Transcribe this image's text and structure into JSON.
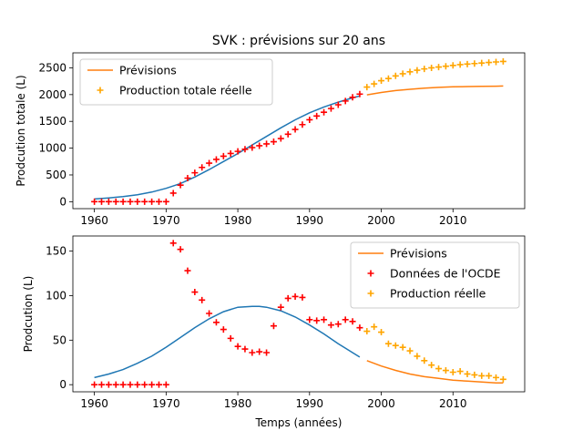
{
  "chart_data": {
    "title": "SVK : prévisions sur 20 ans",
    "charts": [
      {
        "type": "line+scatter",
        "ylabel": "Prodcution totale (L)",
        "xlabel": "",
        "xlim": [
          1957,
          2020
        ],
        "ylim": [
          -130,
          2780
        ],
        "xticks": [
          1960,
          1970,
          1980,
          1990,
          2000,
          2010
        ],
        "yticks": [
          0,
          500,
          1000,
          1500,
          2000,
          2500
        ],
        "legend_position": "top-left",
        "legend": [
          "Prévisions",
          "Production totale réelle"
        ],
        "fit_line": {
          "name": "",
          "color": "#1f77b4",
          "x": [
            1960,
            1962,
            1964,
            1966,
            1968,
            1970,
            1972,
            1974,
            1976,
            1978,
            1980,
            1982,
            1984,
            1986,
            1988,
            1990,
            1992,
            1994,
            1996,
            1997
          ],
          "y": [
            50,
            70,
            95,
            130,
            180,
            250,
            340,
            460,
            600,
            750,
            900,
            1060,
            1220,
            1380,
            1530,
            1660,
            1770,
            1860,
            1940,
            1975
          ]
        },
        "forecast_line": {
          "name": "Prévisions",
          "color": "#ff7f0e",
          "x": [
            1998,
            2000,
            2002,
            2004,
            2006,
            2008,
            2010,
            2012,
            2014,
            2016,
            2017
          ],
          "y": [
            1995,
            2040,
            2075,
            2100,
            2120,
            2135,
            2145,
            2150,
            2155,
            2158,
            2160
          ]
        },
        "observed_points": {
          "name": "",
          "color": "#ff0000",
          "x": [
            1960,
            1961,
            1962,
            1963,
            1964,
            1965,
            1966,
            1967,
            1968,
            1969,
            1970,
            1971,
            1972,
            1973,
            1974,
            1975,
            1976,
            1977,
            1978,
            1979,
            1980,
            1981,
            1982,
            1983,
            1984,
            1985,
            1986,
            1987,
            1988,
            1989,
            1990,
            1991,
            1992,
            1993,
            1994,
            1995,
            1996,
            1997
          ],
          "y": [
            0,
            0,
            0,
            0,
            0,
            0,
            0,
            0,
            0,
            0,
            0,
            160,
            310,
            440,
            540,
            640,
            720,
            790,
            850,
            900,
            940,
            980,
            1010,
            1045,
            1080,
            1120,
            1180,
            1260,
            1350,
            1440,
            1530,
            1600,
            1670,
            1740,
            1810,
            1880,
            1950,
            2010
          ]
        },
        "forecast_points": {
          "name": "Production totale réelle",
          "color": "#ffa500",
          "x": [
            1998,
            1999,
            2000,
            2001,
            2002,
            2003,
            2004,
            2005,
            2006,
            2007,
            2008,
            2009,
            2010,
            2011,
            2012,
            2013,
            2014,
            2015,
            2016,
            2017
          ],
          "y": [
            2140,
            2200,
            2260,
            2300,
            2350,
            2390,
            2425,
            2455,
            2480,
            2500,
            2515,
            2530,
            2545,
            2560,
            2570,
            2580,
            2590,
            2600,
            2610,
            2620
          ]
        }
      },
      {
        "type": "line+scatter",
        "ylabel": "Prodcution (L)",
        "xlabel": "Temps (années)",
        "xlim": [
          1957,
          2020
        ],
        "ylim": [
          -8,
          167
        ],
        "xticks": [
          1960,
          1970,
          1980,
          1990,
          2000,
          2010
        ],
        "yticks": [
          0,
          50,
          100,
          150
        ],
        "legend_position": "top-right",
        "legend": [
          "Prévisions",
          "Données de l'OCDE",
          "Production réelle"
        ],
        "fit_line": {
          "name": "",
          "color": "#1f77b4",
          "x": [
            1960,
            1962,
            1964,
            1966,
            1968,
            1970,
            1972,
            1974,
            1976,
            1978,
            1980,
            1982,
            1983,
            1984,
            1986,
            1988,
            1990,
            1992,
            1994,
            1996,
            1997
          ],
          "y": [
            8,
            12,
            17,
            24,
            32,
            42,
            53,
            64,
            74,
            82,
            87,
            88,
            88,
            87,
            83,
            76,
            67,
            57,
            46,
            36,
            31
          ]
        },
        "forecast_line": {
          "name": "Prévisions",
          "color": "#ff7f0e",
          "x": [
            1998,
            2000,
            2002,
            2004,
            2006,
            2008,
            2010,
            2012,
            2014,
            2016,
            2017
          ],
          "y": [
            27,
            21,
            16,
            12,
            9,
            7,
            5,
            4,
            3,
            2,
            2
          ]
        },
        "observed_points": {
          "name": "Données de l'OCDE",
          "color": "#ff0000",
          "x": [
            1960,
            1961,
            1962,
            1963,
            1964,
            1965,
            1966,
            1967,
            1968,
            1969,
            1970,
            1971,
            1972,
            1973,
            1974,
            1975,
            1976,
            1977,
            1978,
            1979,
            1980,
            1981,
            1982,
            1983,
            1984,
            1985,
            1986,
            1987,
            1988,
            1989,
            1990,
            1991,
            1992,
            1993,
            1994,
            1995,
            1996,
            1997
          ],
          "y": [
            0,
            0,
            0,
            0,
            0,
            0,
            0,
            0,
            0,
            0,
            0,
            159,
            152,
            128,
            104,
            95,
            80,
            70,
            62,
            52,
            43,
            40,
            36,
            37,
            36,
            66,
            87,
            97,
            99,
            98,
            73,
            72,
            73,
            67,
            68,
            73,
            71,
            64
          ]
        },
        "forecast_points": {
          "name": "Production réelle",
          "color": "#ffa500",
          "x": [
            1998,
            1999,
            2000,
            2001,
            2002,
            2003,
            2004,
            2005,
            2006,
            2007,
            2008,
            2009,
            2010,
            2011,
            2012,
            2013,
            2014,
            2015,
            2016,
            2017
          ],
          "y": [
            60,
            65,
            59,
            46,
            44,
            42,
            38,
            32,
            27,
            22,
            18,
            16,
            14,
            15,
            12,
            11,
            10,
            10,
            8,
            6
          ]
        }
      }
    ]
  }
}
